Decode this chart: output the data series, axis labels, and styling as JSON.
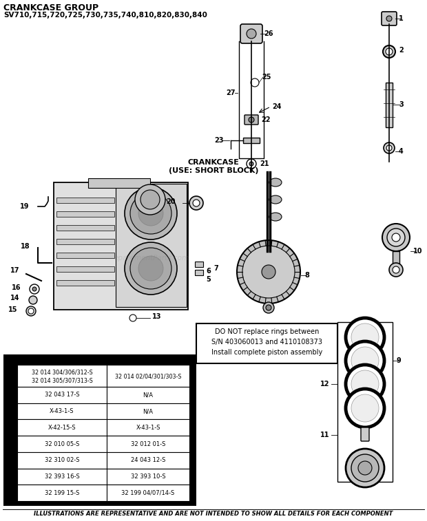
{
  "title": "CRANKCASE GROUP",
  "subtitle": "SV710,715,720,725,730,735,740,810,820,830,840",
  "footer": "ILLUSTRATIONS ARE REPRESENTATIVE AND ARE NOT INTENDED TO SHOW ALL DETAILS FOR EACH COMPONENT",
  "crankcase_label": "CRANKCASE\n(USE: SHORT BLOCK)",
  "warning_box": "DO NOT replace rings between\nS/N 403060013 and 4110108373\nInstall complete piston assembly",
  "table_header_col1": "32 014 304/306/312-S\n32 014 305/307/313-S",
  "table_header_col2": "32 014 02/04/301/303-S",
  "table_rows": [
    [
      "32 043 17-S",
      "N/A"
    ],
    [
      "X-43-1-S",
      "N/A"
    ],
    [
      "X-42-15-S",
      "X-43-1-S"
    ],
    [
      "32 010 05-S",
      "32 012 01-S"
    ],
    [
      "32 310 02-S",
      "24 043 12-S"
    ],
    [
      "32 393 16-S",
      "32 393 10-S"
    ],
    [
      "32 199 15-S",
      "32 199 04/07/14-S"
    ]
  ],
  "bg_color": "#ffffff",
  "table_bg": "#000000",
  "watermark": "eparementParts.com"
}
